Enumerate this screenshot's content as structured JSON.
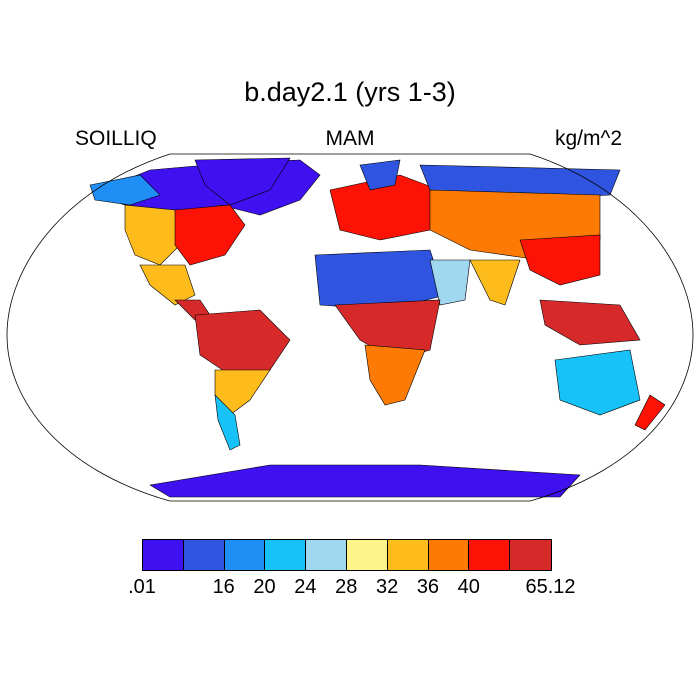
{
  "title": "b.day2.1 (yrs 1-3)",
  "subtitle_left": "SOILLIQ",
  "subtitle_center": "MAM",
  "subtitle_right": "kg/m^2",
  "colorbar": {
    "colors": [
      "#3f10f0",
      "#2f55e0",
      "#1f8ff5",
      "#16c2f7",
      "#a0d8f0",
      "#fef48a",
      "#fdbc1c",
      "#fd7a05",
      "#fd1306",
      "#d62a2a"
    ],
    "labels": [
      ".01",
      "",
      "16",
      "20",
      "24",
      "28",
      "32",
      "36",
      "40",
      "",
      "65.12"
    ]
  },
  "map": {
    "projection": "Robinson",
    "ocean_color": "#ffffff",
    "outline_color": "#000000"
  }
}
